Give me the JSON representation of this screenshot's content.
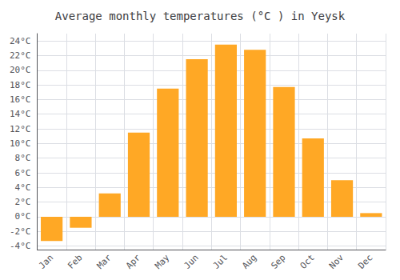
{
  "chart_data": {
    "type": "bar",
    "title": "Average monthly temperatures (°C ) in Yeysk",
    "categories": [
      "Jan",
      "Feb",
      "Mar",
      "Apr",
      "May",
      "Jun",
      "Jul",
      "Aug",
      "Sep",
      "Oct",
      "Nov",
      "Dec"
    ],
    "values": [
      -3.3,
      -1.5,
      3.2,
      11.5,
      17.5,
      21.5,
      23.5,
      22.8,
      17.7,
      10.7,
      5.0,
      0.5
    ],
    "color": "#FFA825",
    "ylim": [
      -4.5,
      25
    ],
    "yticks": [
      {
        "value": -4,
        "label": "-4°C"
      },
      {
        "value": -2,
        "label": "-2°C"
      },
      {
        "value": 0,
        "label": "0°C"
      },
      {
        "value": 2,
        "label": "2°C"
      },
      {
        "value": 4,
        "label": "4°C"
      },
      {
        "value": 6,
        "label": "6°C"
      },
      {
        "value": 8,
        "label": "8°C"
      },
      {
        "value": 10,
        "label": "10°C"
      },
      {
        "value": 12,
        "label": "12°C"
      },
      {
        "value": 14,
        "label": "14°C"
      },
      {
        "value": 16,
        "label": "16°C"
      },
      {
        "value": 18,
        "label": "18°C"
      },
      {
        "value": 20,
        "label": "20°C"
      },
      {
        "value": 22,
        "label": "22°C"
      },
      {
        "value": 24,
        "label": "24°C"
      }
    ],
    "grid": true
  }
}
